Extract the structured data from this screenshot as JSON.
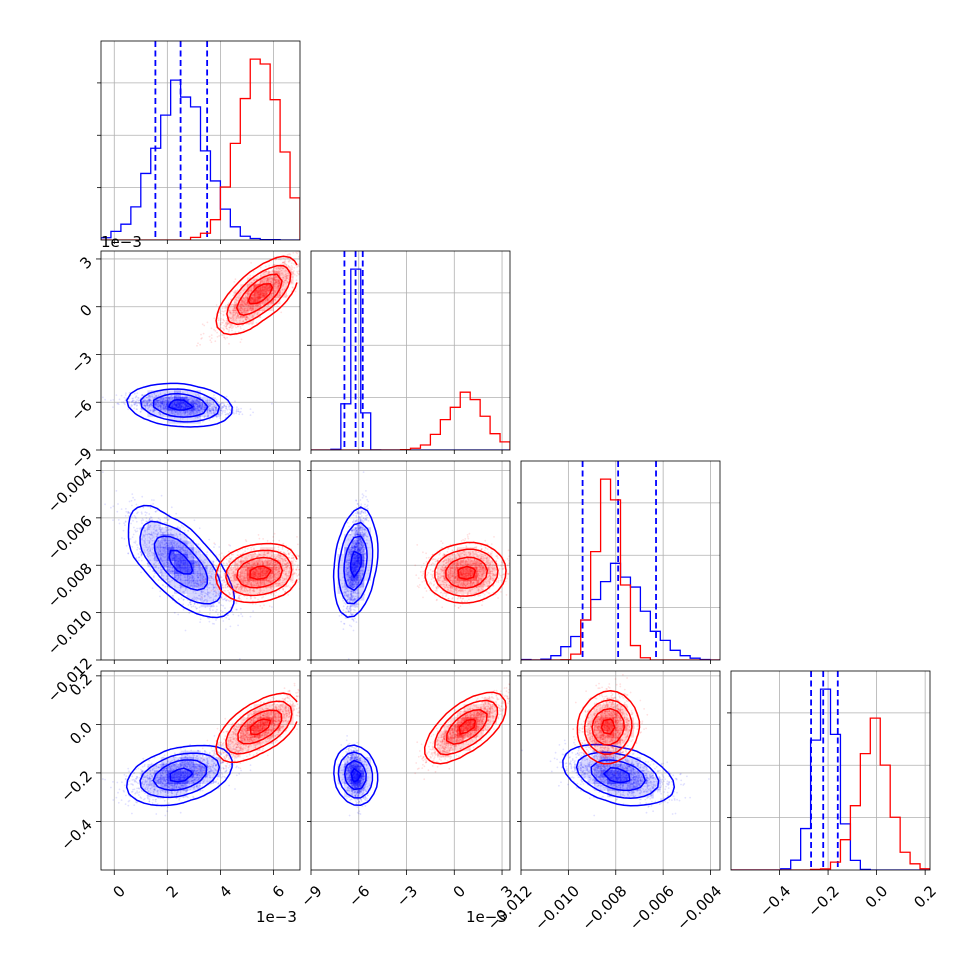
{
  "chart_data": {
    "type": "corner",
    "grid": true,
    "colors": {
      "blue": "#0000ff",
      "red": "#ff0000"
    },
    "parameters": [
      {
        "range": [
          -0.5,
          7.0
        ],
        "ticks": [
          0,
          2,
          4,
          6
        ],
        "tick_labels": [
          "0",
          "2",
          "4",
          "6"
        ],
        "offset_label": "1e−3"
      },
      {
        "range": [
          -9.0,
          3.5
        ],
        "ticks": [
          -9,
          -6,
          -3,
          0,
          3
        ],
        "tick_labels": [
          "−9",
          "−6",
          "−3",
          "0",
          "3"
        ],
        "offset_label": "1e−3"
      },
      {
        "range": [
          -0.012,
          -0.0036
        ],
        "ticks": [
          -0.012,
          -0.01,
          -0.008,
          -0.006,
          -0.004
        ],
        "tick_labels": [
          "−0.012",
          "−0.010",
          "−0.008",
          "−0.006",
          "−0.004"
        ],
        "offset_label": ""
      },
      {
        "range": [
          -0.6,
          0.22
        ],
        "ticks": [
          -0.4,
          -0.2,
          0.0,
          0.2
        ],
        "tick_labels": [
          "−0.4",
          "−0.2",
          "0.0",
          "0.2"
        ],
        "offset_label": ""
      }
    ],
    "series": [
      {
        "color": "blue",
        "means": [
          2.5,
          -6.2,
          -0.0079,
          -0.21
        ],
        "stds": [
          0.95,
          0.32,
          0.00108,
          0.048
        ],
        "corr": [
          [
            1.0,
            -0.45,
            -0.75,
            0.5
          ],
          [
            -0.45,
            1.0,
            0.6,
            -0.3
          ],
          [
            -0.75,
            0.6,
            1.0,
            -0.5
          ],
          [
            0.5,
            -0.3,
            -0.5,
            1.0
          ]
        ],
        "quantiles": [
          [
            1.55,
            2.5,
            3.5
          ],
          [
            -6.9,
            -6.2,
            -5.75
          ],
          [
            -0.0094,
            -0.0079,
            -0.0063
          ],
          [
            -0.27,
            -0.22,
            -0.16
          ]
        ]
      },
      {
        "color": "red",
        "means": [
          5.5,
          0.8,
          -0.0083,
          -0.01
        ],
        "stds": [
          0.8,
          1.2,
          0.0005,
          0.065
        ],
        "corr": [
          [
            1.0,
            0.85,
            0.2,
            0.8
          ],
          [
            0.85,
            1.0,
            0.1,
            0.85
          ],
          [
            0.2,
            0.1,
            1.0,
            0.1
          ],
          [
            0.8,
            0.85,
            0.1,
            1.0
          ]
        ],
        "quantiles": []
      }
    ]
  }
}
